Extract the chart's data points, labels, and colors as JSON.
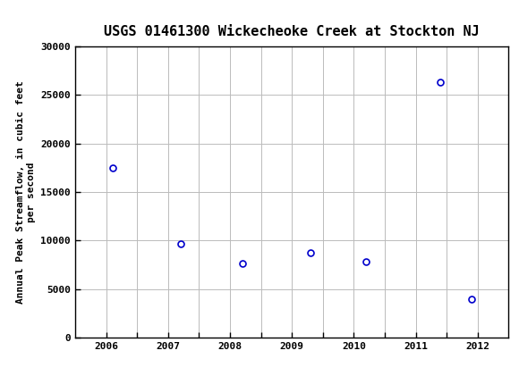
{
  "title": "USGS 01461300 Wickecheoke Creek at Stockton NJ",
  "ylabel": "Annual Peak Streamflow, in cubic feet\nper second",
  "x_values": [
    2006.1,
    2007.2,
    2008.2,
    2009.3,
    2010.2,
    2011.4,
    2011.9
  ],
  "y_values": [
    17500,
    9700,
    7700,
    8800,
    7800,
    26300,
    4000
  ],
  "xlim": [
    2005.5,
    2012.5
  ],
  "ylim": [
    0,
    30000
  ],
  "xticks": [
    2006,
    2006.5,
    2007,
    2007.5,
    2008,
    2008.5,
    2009,
    2009.5,
    2010,
    2010.5,
    2011,
    2011.5,
    2012
  ],
  "xtick_labels": [
    "2006",
    "",
    "2007",
    "",
    "2008",
    "",
    "2009",
    "",
    "2010",
    "",
    "2011",
    "",
    "2012"
  ],
  "yticks": [
    0,
    5000,
    10000,
    15000,
    20000,
    25000,
    30000
  ],
  "marker_color": "#0000cc",
  "marker_size": 5,
  "grid_color": "#bbbbbb",
  "header_color": "#1a7040",
  "background_color": "#ffffff",
  "plot_bg_color": "#ffffff",
  "title_fontsize": 11,
  "label_fontsize": 8,
  "tick_fontsize": 8
}
